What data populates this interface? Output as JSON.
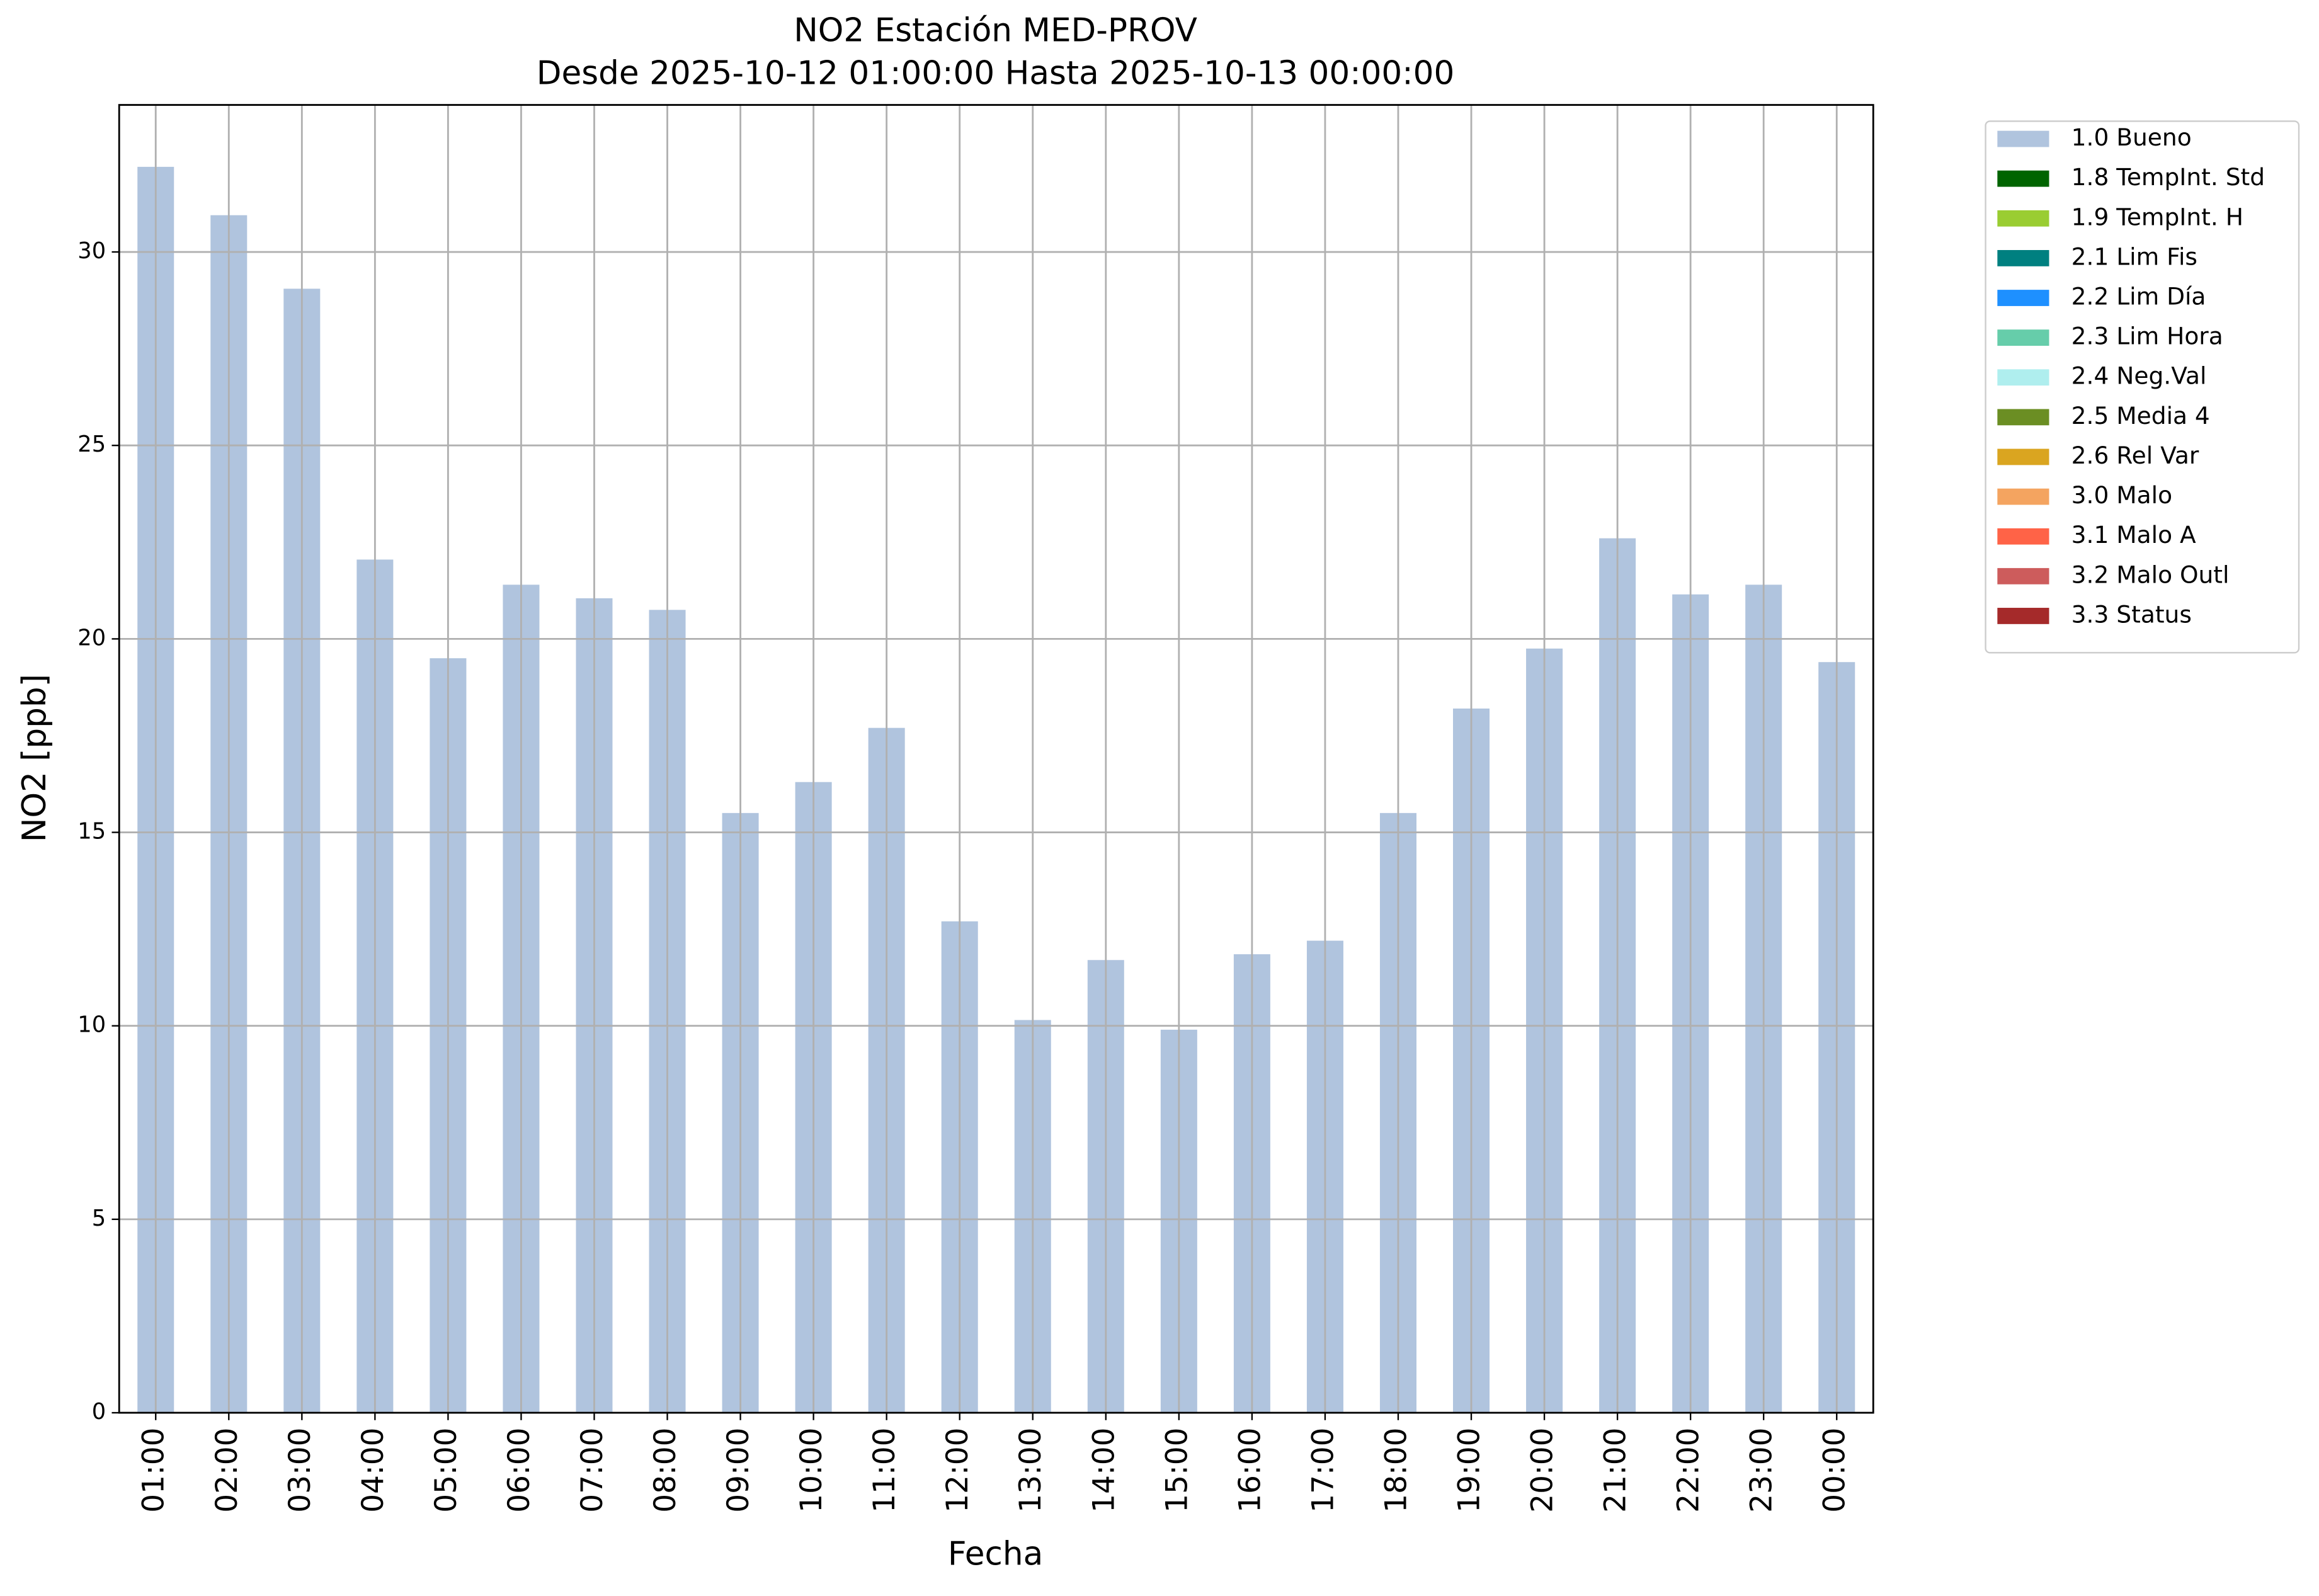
{
  "chart_data": {
    "type": "bar",
    "title": "NO2 Estación MED-PROV",
    "subtitle": "Desde 2025-10-12 01:00:00 Hasta 2025-10-13 00:00:00",
    "x_label": "Fecha",
    "y_label": "NO2 [ppb]",
    "categories": [
      "01:00",
      "02:00",
      "03:00",
      "04:00",
      "05:00",
      "06:00",
      "07:00",
      "08:00",
      "09:00",
      "10:00",
      "11:00",
      "12:00",
      "13:00",
      "14:00",
      "15:00",
      "16:00",
      "17:00",
      "18:00",
      "19:00",
      "20:00",
      "21:00",
      "22:00",
      "23:00",
      "00:00"
    ],
    "series": [
      {
        "name": "1.0 Bueno",
        "color": "#b0c4de",
        "values": [
          32.2,
          30.95,
          29.05,
          22.05,
          19.5,
          21.4,
          21.05,
          20.75,
          15.5,
          16.3,
          17.7,
          12.7,
          10.15,
          11.7,
          9.9,
          11.85,
          12.2,
          15.5,
          18.2,
          19.75,
          22.6,
          21.15,
          21.4,
          19.4
        ]
      },
      {
        "name": "1.8 TempInt. Std",
        "color": "#006400"
      },
      {
        "name": "1.9 TempInt. H",
        "color": "#9acd32"
      },
      {
        "name": "2.1 Lim Fis",
        "color": "#008080"
      },
      {
        "name": "2.2 Lim Día",
        "color": "#1e90ff"
      },
      {
        "name": "2.3 Lim Hora",
        "color": "#66cdaa"
      },
      {
        "name": "2.4 Neg.Val",
        "color": "#afeeee"
      },
      {
        "name": "2.5 Media 4",
        "color": "#6b8e23"
      },
      {
        "name": "2.6 Rel Var",
        "color": "#daa520"
      },
      {
        "name": "3.0 Malo",
        "color": "#f4a460"
      },
      {
        "name": "3.1 Malo A",
        "color": "#ff6347"
      },
      {
        "name": "3.2 Malo Outl",
        "color": "#cd5c5c"
      },
      {
        "name": "3.3 Status",
        "color": "#a52a2a"
      }
    ],
    "ylim": [
      0,
      33.8
    ],
    "yticks": [
      0,
      5,
      10,
      15,
      20,
      25,
      30
    ],
    "grid": true,
    "legend": "outside right"
  }
}
